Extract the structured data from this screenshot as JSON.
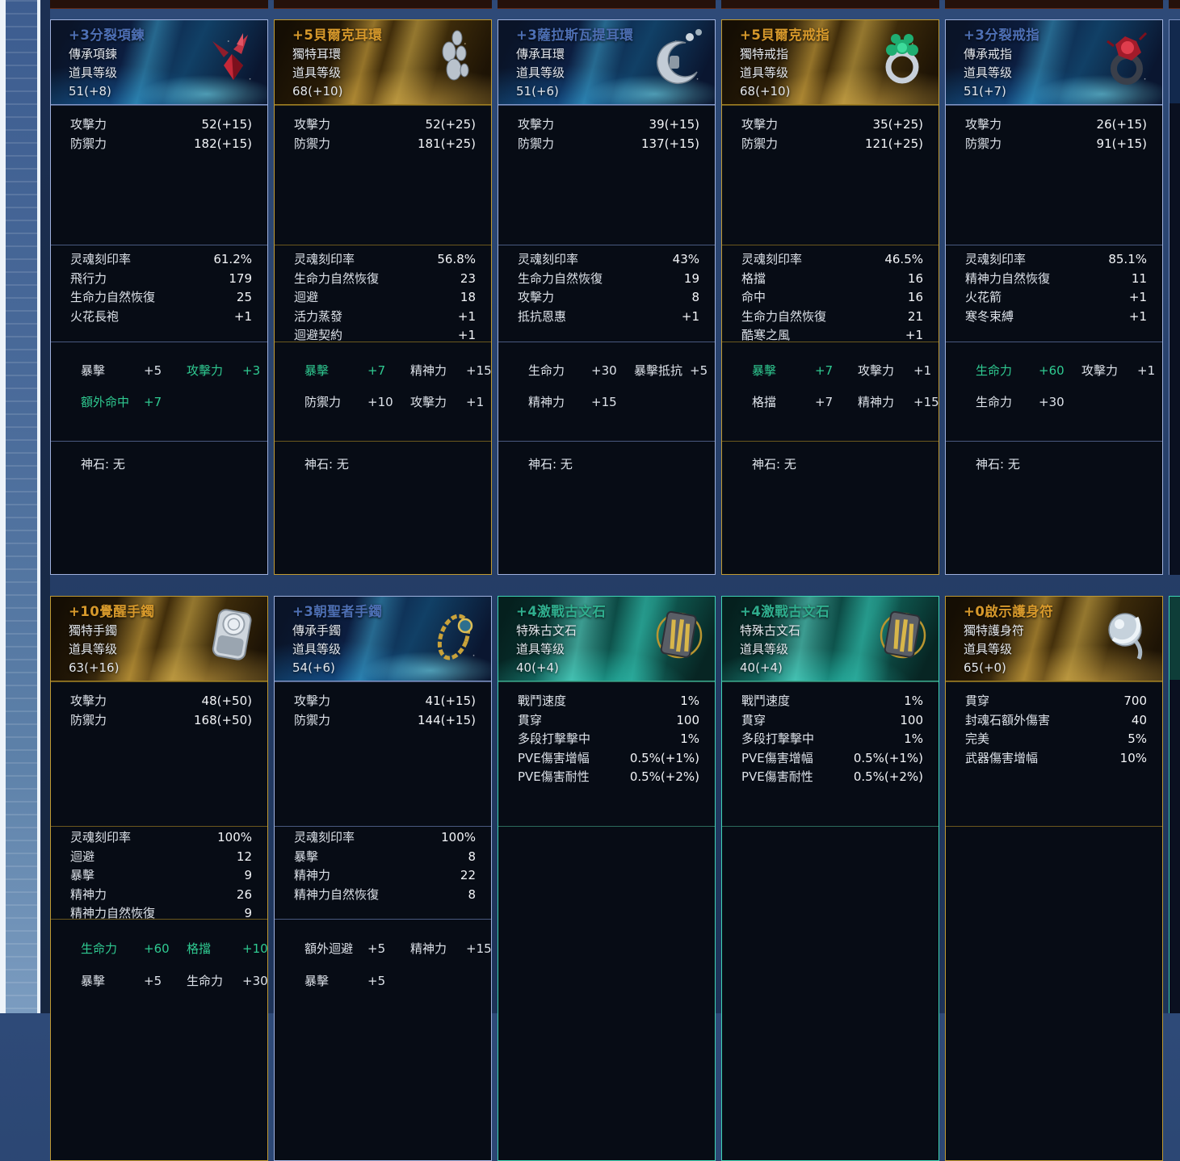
{
  "colors": {
    "heirloom_accent": "#9fb1dd",
    "heirloom_title": "#4d6fb4",
    "unique_accent": "#c09a33",
    "unique_title": "#d7992b",
    "special_accent": "#3fd4b4",
    "special_title": "#2fae8e",
    "bonus_green": "#2fca91"
  },
  "cards": [
    {
      "row": 1,
      "rarity": "heirloom",
      "icon": "red-winged-pendant-icon",
      "name": "+3分裂項鍊",
      "type": "傳承項鍊",
      "level_label": "道具等级",
      "level": "51(+8)",
      "base_stats": [
        {
          "label": "攻擊力",
          "value": "52(+15)"
        },
        {
          "label": "防禦力",
          "value": "182(+15)"
        }
      ],
      "soul_stats": [
        {
          "label": "灵魂刻印率",
          "value": "61.2%"
        },
        {
          "label": "飛行力",
          "value": "179"
        },
        {
          "label": "生命力自然恢復",
          "value": "25"
        },
        {
          "label": "火花長袍",
          "value": "+1"
        }
      ],
      "bonus_stats": [
        {
          "label": "暴擊",
          "value": "+5",
          "green": false
        },
        {
          "label": "攻擊力",
          "value": "+3",
          "green": true
        },
        {
          "label": "額外命中",
          "value": "+7",
          "green": true
        }
      ],
      "godstone": "神石: 无"
    },
    {
      "row": 1,
      "rarity": "unique",
      "icon": "silver-earring-icon",
      "name": "+5貝爾克耳環",
      "type": "獨特耳環",
      "level_label": "道具等级",
      "level": "68(+10)",
      "base_stats": [
        {
          "label": "攻擊力",
          "value": "52(+25)"
        },
        {
          "label": "防禦力",
          "value": "181(+25)"
        }
      ],
      "soul_stats": [
        {
          "label": "灵魂刻印率",
          "value": "56.8%"
        },
        {
          "label": "生命力自然恢復",
          "value": "23"
        },
        {
          "label": "迴避",
          "value": "18"
        },
        {
          "label": "活力蒸發",
          "value": "+1"
        },
        {
          "label": "迴避契約",
          "value": "+1"
        }
      ],
      "bonus_stats": [
        {
          "label": "暴擊",
          "value": "+7",
          "green": true
        },
        {
          "label": "精神力",
          "value": "+15",
          "green": false
        },
        {
          "label": "防禦力",
          "value": "+10",
          "green": false
        },
        {
          "label": "攻擊力",
          "value": "+1",
          "green": false
        }
      ],
      "godstone": "神石: 无"
    },
    {
      "row": 1,
      "rarity": "heirloom",
      "icon": "crescent-earring-icon",
      "name": "+3薩拉斯瓦提耳環",
      "type": "傳承耳環",
      "level_label": "道具等级",
      "level": "51(+6)",
      "base_stats": [
        {
          "label": "攻擊力",
          "value": "39(+15)"
        },
        {
          "label": "防禦力",
          "value": "137(+15)"
        }
      ],
      "soul_stats": [
        {
          "label": "灵魂刻印率",
          "value": "43%"
        },
        {
          "label": "生命力自然恢復",
          "value": "19"
        },
        {
          "label": "攻擊力",
          "value": "8"
        },
        {
          "label": "抵抗恩惠",
          "value": "+1"
        }
      ],
      "bonus_stats": [
        {
          "label": "生命力",
          "value": "+30",
          "green": false
        },
        {
          "label": "暴擊抵抗",
          "value": "+5",
          "green": false
        },
        {
          "label": "精神力",
          "value": "+15",
          "green": false
        }
      ],
      "godstone": "神石: 无"
    },
    {
      "row": 1,
      "rarity": "unique",
      "icon": "green-flower-ring-icon",
      "name": "+5貝爾克戒指",
      "type": "獨特戒指",
      "level_label": "道具等级",
      "level": "68(+10)",
      "base_stats": [
        {
          "label": "攻擊力",
          "value": "35(+25)"
        },
        {
          "label": "防禦力",
          "value": "121(+25)"
        }
      ],
      "soul_stats": [
        {
          "label": "灵魂刻印率",
          "value": "46.5%"
        },
        {
          "label": "格擋",
          "value": "16"
        },
        {
          "label": "命中",
          "value": "16"
        },
        {
          "label": "生命力自然恢復",
          "value": "21"
        },
        {
          "label": "酷寒之風",
          "value": "+1"
        }
      ],
      "bonus_stats": [
        {
          "label": "暴擊",
          "value": "+7",
          "green": true
        },
        {
          "label": "攻擊力",
          "value": "+1",
          "green": false
        },
        {
          "label": "格擋",
          "value": "+7",
          "green": false
        },
        {
          "label": "精神力",
          "value": "+15",
          "green": false
        }
      ],
      "godstone": "神石: 无"
    },
    {
      "row": 1,
      "rarity": "heirloom",
      "icon": "red-gem-ring-icon",
      "name": "+3分裂戒指",
      "type": "傳承戒指",
      "level_label": "道具等级",
      "level": "51(+7)",
      "base_stats": [
        {
          "label": "攻擊力",
          "value": "26(+15)"
        },
        {
          "label": "防禦力",
          "value": "91(+15)"
        }
      ],
      "soul_stats": [
        {
          "label": "灵魂刻印率",
          "value": "85.1%"
        },
        {
          "label": "精神力自然恢復",
          "value": "11"
        },
        {
          "label": "火花箭",
          "value": "+1"
        },
        {
          "label": "寒冬束縛",
          "value": "+1"
        }
      ],
      "bonus_stats": [
        {
          "label": "生命力",
          "value": "+60",
          "green": true
        },
        {
          "label": "攻擊力",
          "value": "+1",
          "green": false
        },
        {
          "label": "生命力",
          "value": "+30",
          "green": false
        }
      ],
      "godstone": "神石: 无"
    },
    {
      "row": 2,
      "rarity": "unique",
      "icon": "silver-bracelet-icon",
      "name": "+10覺醒手鐲",
      "type": "獨特手鐲",
      "level_label": "道具等级",
      "level": "63(+16)",
      "base_stats": [
        {
          "label": "攻擊力",
          "value": "48(+50)"
        },
        {
          "label": "防禦力",
          "value": "168(+50)"
        }
      ],
      "soul_stats": [
        {
          "label": "灵魂刻印率",
          "value": "100%"
        },
        {
          "label": "迴避",
          "value": "12"
        },
        {
          "label": "暴擊",
          "value": "9"
        },
        {
          "label": "精神力",
          "value": "26"
        },
        {
          "label": "精神力自然恢復",
          "value": "9"
        }
      ],
      "bonus_stats": [
        {
          "label": "生命力",
          "value": "+60",
          "green": true
        },
        {
          "label": "格擋",
          "value": "+10",
          "green": true
        },
        {
          "label": "暴擊",
          "value": "+5",
          "green": false
        },
        {
          "label": "生命力",
          "value": "+30",
          "green": false
        }
      ]
    },
    {
      "row": 2,
      "rarity": "heirloom",
      "icon": "gold-bracelet-icon",
      "name": "+3朝聖者手鐲",
      "type": "傳承手鐲",
      "level_label": "道具等级",
      "level": "54(+6)",
      "base_stats": [
        {
          "label": "攻擊力",
          "value": "41(+15)"
        },
        {
          "label": "防禦力",
          "value": "144(+15)"
        }
      ],
      "soul_stats": [
        {
          "label": "灵魂刻印率",
          "value": "100%"
        },
        {
          "label": "暴擊",
          "value": "8"
        },
        {
          "label": "精神力",
          "value": "22"
        },
        {
          "label": "精神力自然恢復",
          "value": "8"
        }
      ],
      "bonus_stats": [
        {
          "label": "額外迴避",
          "value": "+5",
          "green": false
        },
        {
          "label": "精神力",
          "value": "+15",
          "green": false
        },
        {
          "label": "暴擊",
          "value": "+5",
          "green": false
        }
      ]
    },
    {
      "row": 2,
      "rarity": "special",
      "icon": "runestone-icon",
      "name": "+4激戰古文石",
      "type": "特殊古文石",
      "level_label": "道具等级",
      "level": "40(+4)",
      "base_stats": [
        {
          "label": "戰鬥速度",
          "value": "1%"
        },
        {
          "label": "貫穿",
          "value": "100"
        },
        {
          "label": "多段打擊擊中",
          "value": "1%"
        },
        {
          "label": "PVE傷害增幅",
          "value": "0.5%(+1%)"
        },
        {
          "label": "PVE傷害耐性",
          "value": "0.5%(+2%)"
        }
      ],
      "soul_stats": [],
      "bonus_stats": []
    },
    {
      "row": 2,
      "rarity": "special",
      "icon": "runestone-icon",
      "name": "+4激戰古文石",
      "type": "特殊古文石",
      "level_label": "道具等级",
      "level": "40(+4)",
      "base_stats": [
        {
          "label": "戰鬥速度",
          "value": "1%"
        },
        {
          "label": "貫穿",
          "value": "100"
        },
        {
          "label": "多段打擊擊中",
          "value": "1%"
        },
        {
          "label": "PVE傷害增幅",
          "value": "0.5%(+1%)"
        },
        {
          "label": "PVE傷害耐性",
          "value": "0.5%(+2%)"
        }
      ],
      "soul_stats": [],
      "bonus_stats": []
    },
    {
      "row": 2,
      "rarity": "unique",
      "icon": "silver-amulet-icon",
      "name": "+0啟示護身符",
      "type": "獨特護身符",
      "level_label": "道具等级",
      "level": "65(+0)",
      "base_stats": [
        {
          "label": "貫穿",
          "value": "700"
        },
        {
          "label": "封魂石額外傷害",
          "value": "40"
        },
        {
          "label": "完美",
          "value": "5%"
        },
        {
          "label": "武器傷害增幅",
          "value": "10%"
        }
      ],
      "soul_stats": [],
      "bonus_stats": []
    }
  ]
}
